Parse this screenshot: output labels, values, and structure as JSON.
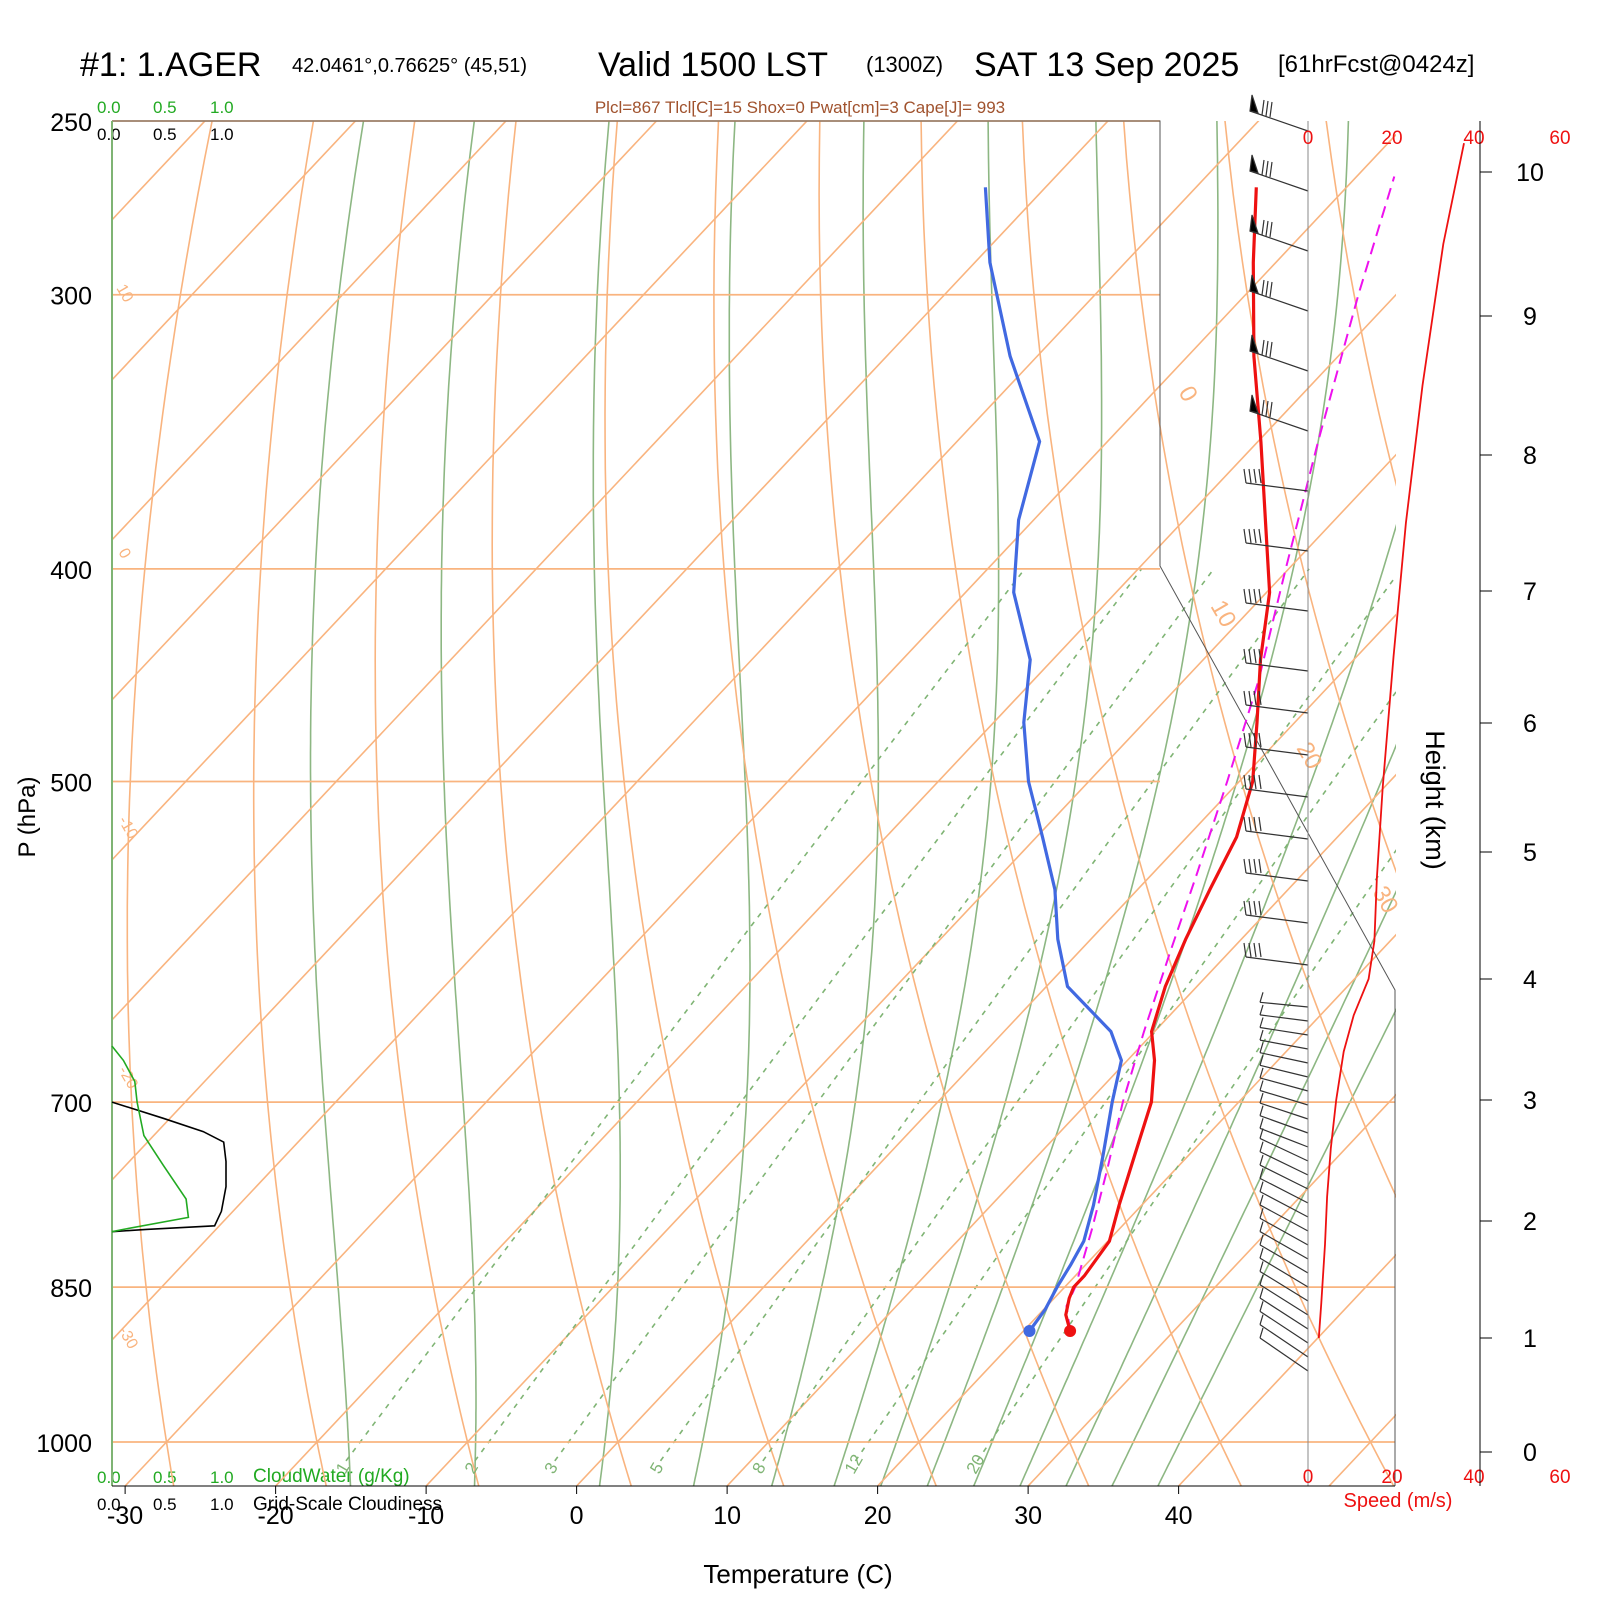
{
  "header": {
    "station": "#1: 1.AGER",
    "coords": "42.0461°,0.76625° (45,51)",
    "valid": "Valid 1500 LST",
    "zulu": "(1300Z)",
    "date": "SAT 13 Sep 2025",
    "forecast": "[61hrFcst@0424z]",
    "indices": "Plcl=867 Tlcl[C]=15 Shox=0 Pwat[cm]=3 Cape[J]= 993"
  },
  "colors": {
    "isotherm": "#f9b47f",
    "moist_adiabat": "#8db783",
    "mixing_ratio": "#7fb474",
    "temperature": "#ee1111",
    "dewpoint": "#4169e1",
    "parcel": "#ee11ee",
    "cloud_water": "#22aa22",
    "cloudiness": "#000000",
    "speed": "#ee1111",
    "indices_text": "#a0522d"
  },
  "chart_data": {
    "type": "skew-t",
    "title": "#1: 1.AGER  Valid 1500 LST (1300Z) SAT 13 Sep 2025",
    "xlabel": "Temperature (C)",
    "ylabel": "P (hPa)",
    "y2label": "Height (km)",
    "x_ticks": [
      "-30",
      "-20",
      "-10",
      "0",
      "10",
      "20",
      "30",
      "40"
    ],
    "pressure_levels": [
      "250",
      "300",
      "400",
      "500",
      "700",
      "850",
      "1000"
    ],
    "height_ticks": [
      "0",
      "1",
      "2",
      "3",
      "4",
      "5",
      "6",
      "7",
      "8",
      "9",
      "10"
    ],
    "mixing_ratio_labels": [
      "1",
      "2",
      "3",
      "5",
      "8",
      "12",
      "20"
    ],
    "isotherm_labels": [
      "10",
      "0",
      "-10",
      "-20",
      "-30",
      "0",
      "10",
      "20",
      "30"
    ],
    "temperature": {
      "name": "Temperature",
      "pressure": [
        890,
        875,
        860,
        850,
        840,
        810,
        780,
        740,
        700,
        670,
        650,
        620,
        590,
        560,
        530,
        500,
        470,
        440,
        410,
        380,
        350,
        320,
        290,
        268
      ],
      "values": [
        23.1,
        21.8,
        21.0,
        20.6,
        20.6,
        20.1,
        18.5,
        16.4,
        14.2,
        11.8,
        9.8,
        7.9,
        6.3,
        4.8,
        3.3,
        0.9,
        -2.5,
        -6.2,
        -9.8,
        -14.6,
        -19.8,
        -25.6,
        -31.5,
        -36.0
      ]
    },
    "dewpoint": {
      "name": "Dewpoint",
      "pressure": [
        890,
        870,
        850,
        830,
        810,
        780,
        740,
        700,
        670,
        650,
        620,
        590,
        560,
        530,
        500,
        470,
        440,
        410,
        380,
        350,
        320,
        290,
        268
      ],
      "values": [
        20.4,
        20.1,
        19.5,
        19.0,
        18.4,
        16.8,
        14.3,
        11.6,
        9.6,
        7.1,
        1.4,
        -2.2,
        -5.5,
        -9.6,
        -14.0,
        -18.0,
        -21.5,
        -26.8,
        -31.0,
        -34.5,
        -41.8,
        -49.0,
        -54.0
      ]
    },
    "parcel": {
      "name": "Parcel",
      "pressure": [
        890,
        867,
        850,
        800,
        750,
        700,
        650,
        600,
        550,
        500,
        450,
        400,
        350,
        300,
        265
      ],
      "values": [
        23.1,
        21.3,
        20.7,
        18.2,
        15.4,
        12.3,
        9.3,
        6.2,
        2.9,
        -0.8,
        -5.0,
        -10.2,
        -16.0,
        -22.5,
        -27.5
      ]
    },
    "wind_speed": {
      "name": "Speed (m/s)",
      "height_km": [
        1.0,
        1.3,
        1.8,
        2.2,
        2.6,
        3.0,
        3.4,
        3.7,
        4.0,
        4.3,
        4.8,
        5.5,
        6.5,
        7.5,
        8.5,
        9.5,
        10.2
      ],
      "values": [
        2.6,
        3.2,
        4.1,
        4.6,
        5.5,
        6.8,
        8.6,
        11.0,
        14.6,
        16.0,
        16.6,
        18.0,
        20.6,
        23.6,
        27.6,
        32.6,
        37.6
      ],
      "xlim": [
        0,
        40
      ],
      "tick_labels": [
        "0",
        "20",
        "40",
        "60"
      ]
    },
    "cloud_water": {
      "name": "CloudWater (g/Kg)",
      "scale": [
        "0.0",
        "0.5",
        "1.0"
      ],
      "pressure": [
        660,
        670,
        685,
        700,
        725,
        748,
        775,
        790,
        800,
        802
      ],
      "values": [
        0.0,
        0.1,
        0.2,
        0.22,
        0.28,
        0.45,
        0.65,
        0.67,
        0.1,
        0.0
      ]
    },
    "cloudiness": {
      "name": "Grid-Scale Cloudiness",
      "scale": [
        "0.0",
        "0.5",
        "1.0"
      ],
      "pressure": [
        700,
        712,
        722,
        730,
        745,
        765,
        785,
        797,
        800,
        802
      ],
      "values": [
        0.0,
        0.45,
        0.8,
        0.98,
        1.0,
        1.0,
        0.96,
        0.9,
        0.3,
        0.0
      ]
    },
    "wind_barbs": [
      "upper-level westerlies ~25 m/s with pennants",
      "lower-level light winds veering"
    ]
  }
}
